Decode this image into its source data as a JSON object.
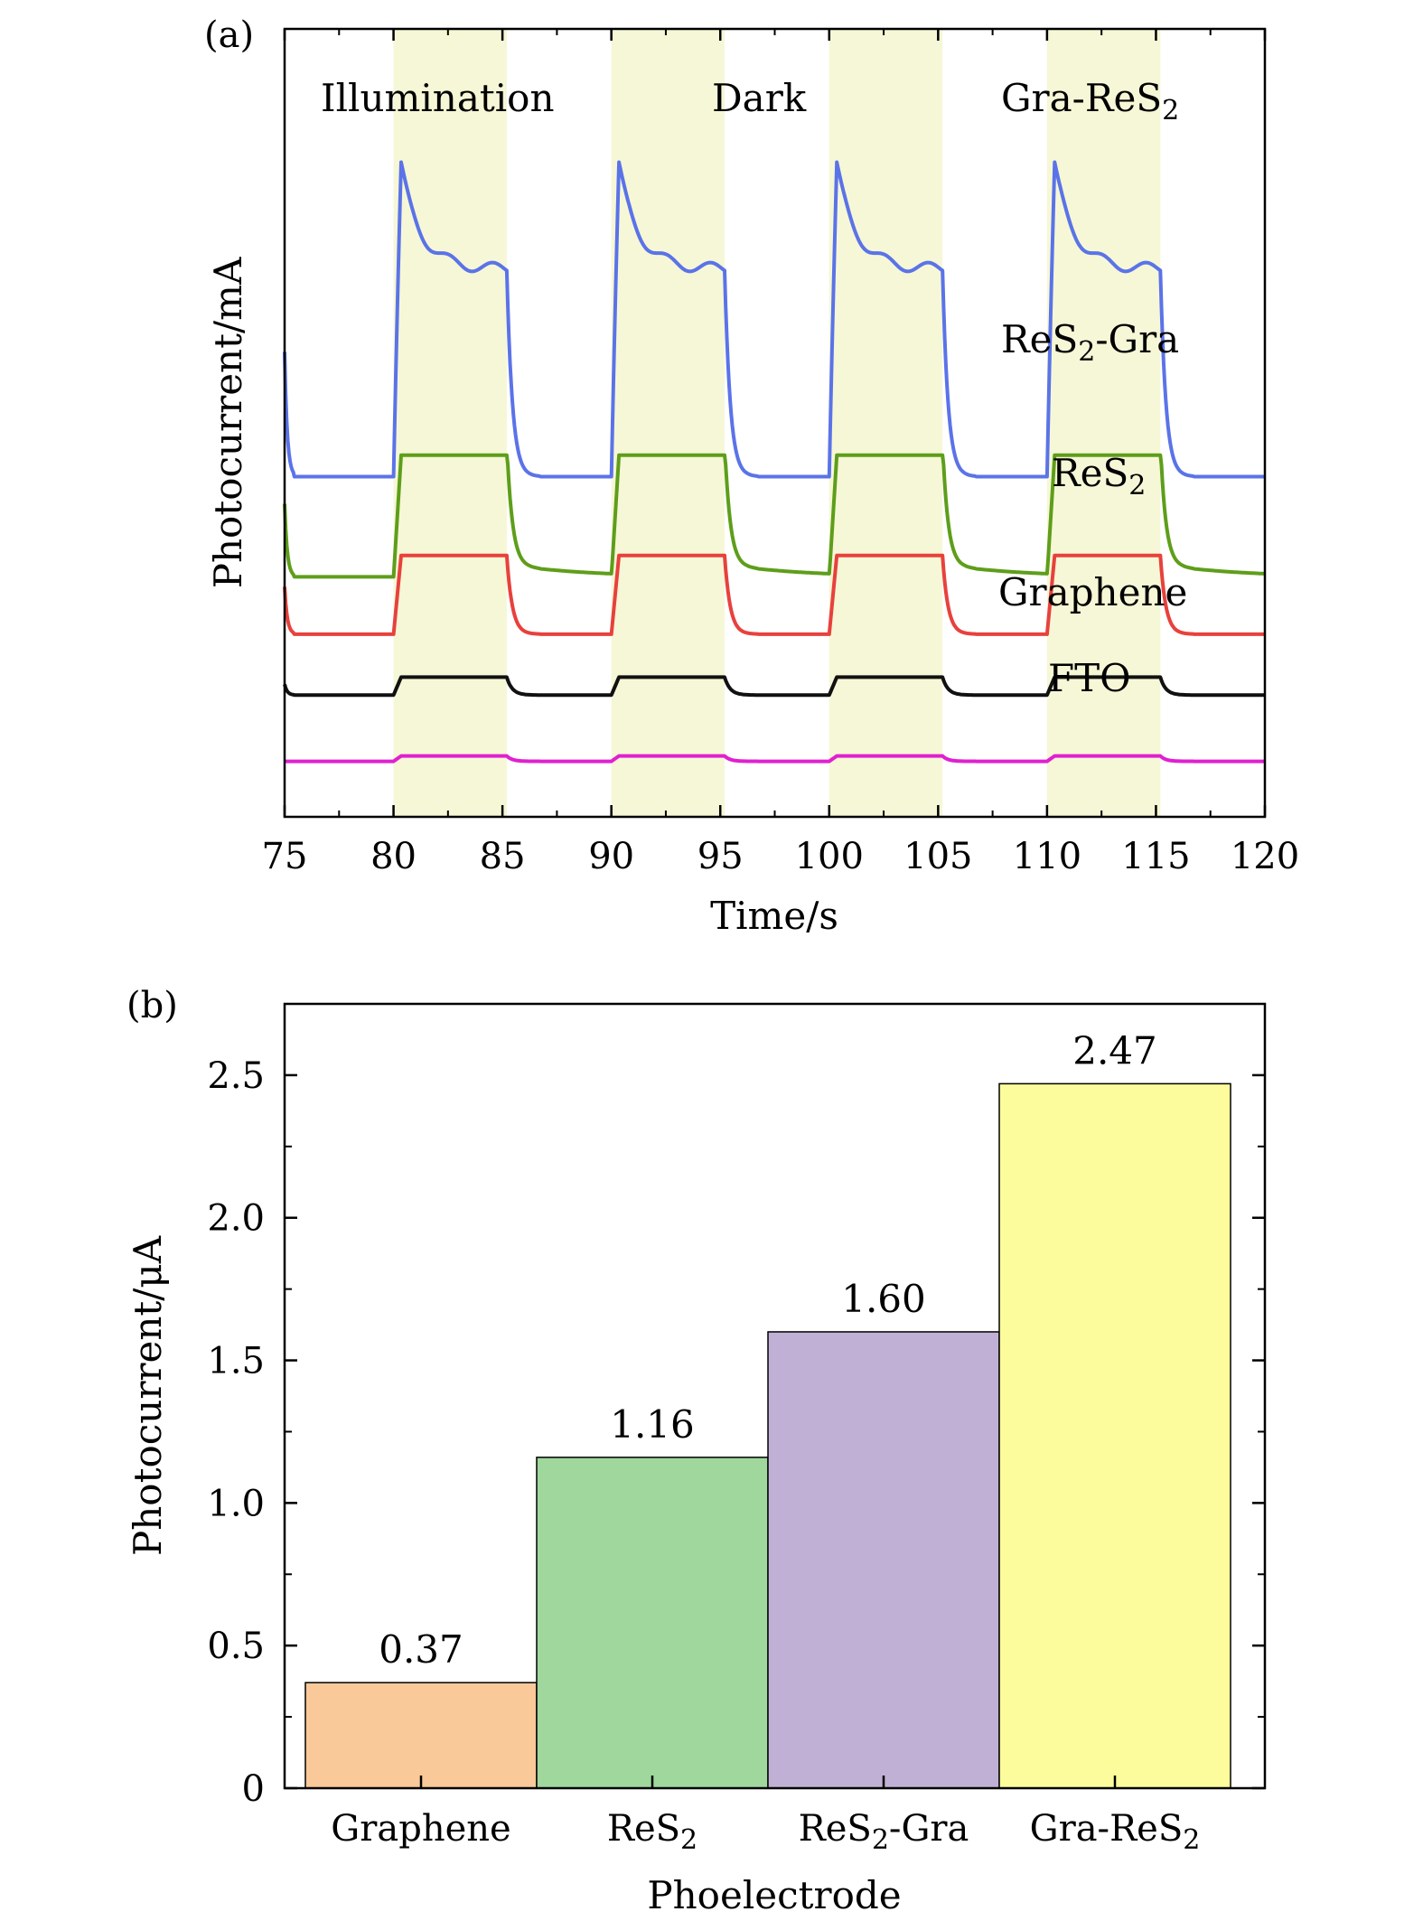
{
  "chart_data": [
    {
      "type": "line",
      "panel_label": "(a)",
      "xlabel": "Time/s",
      "ylabel": "Photocurrent/mA",
      "xlim": [
        75,
        120
      ],
      "x_ticks": [
        75,
        80,
        85,
        90,
        95,
        100,
        105,
        110,
        115,
        120
      ],
      "y_ticks_shown": false,
      "illumination_windows": [
        [
          80,
          85.2
        ],
        [
          90,
          95.2
        ],
        [
          100,
          105.2
        ],
        [
          110,
          115.2
        ]
      ],
      "illumination_color": "#f6f7d6",
      "annotations": [
        {
          "text": "Illumination",
          "sub": "",
          "after": ""
        },
        {
          "text": "Dark",
          "sub": "",
          "after": ""
        },
        {
          "text": "Gra-ReS",
          "sub": "2",
          "after": ""
        },
        {
          "text": "ReS",
          "sub": "2",
          "after": "-Gra"
        },
        {
          "text": "ReS",
          "sub": "2",
          "after": ""
        },
        {
          "text": "Graphene",
          "sub": "",
          "after": ""
        },
        {
          "text": "FTO",
          "sub": "",
          "after": ""
        }
      ],
      "series": [
        {
          "id": "Gra-ReS2",
          "color": "#5b73e8",
          "baseline": 9.0,
          "on_level": 14.8,
          "spike": 19.0,
          "decay": true
        },
        {
          "id": "ReS2-Gra",
          "color": "#5e9e1a",
          "baseline": 6.2,
          "on_level": 9.6,
          "spike": 9.6,
          "decay": false
        },
        {
          "id": "ReS2",
          "color": "#e8413c",
          "baseline": 4.6,
          "on_level": 6.8,
          "spike": 6.8,
          "decay": false
        },
        {
          "id": "Graphene",
          "color": "#111111",
          "baseline": 2.9,
          "on_level": 3.4,
          "spike": 3.4,
          "decay": false
        },
        {
          "id": "FTO",
          "color": "#e020d0",
          "baseline": 1.05,
          "on_level": 1.2,
          "spike": 1.2,
          "decay": false
        }
      ],
      "ylim": [
        -0.5,
        21.5
      ]
    },
    {
      "type": "bar",
      "panel_label": "(b)",
      "xlabel": "Phoelectrode",
      "ylabel": "Photocurrent/μA",
      "ylim": [
        0,
        2.75
      ],
      "y_ticks": [
        "0",
        "0.5",
        "1.0",
        "1.5",
        "2.0",
        "2.5"
      ],
      "y_tick_values": [
        0,
        0.5,
        1.0,
        1.5,
        2.0,
        2.5
      ],
      "categories": [
        {
          "text": "Graphene",
          "sub": "",
          "after": ""
        },
        {
          "text": "ReS",
          "sub": "2",
          "after": ""
        },
        {
          "text": "ReS",
          "sub": "2",
          "after": "-Gra"
        },
        {
          "text": "Gra-ReS",
          "sub": "2",
          "after": ""
        }
      ],
      "values": [
        0.37,
        1.16,
        1.6,
        2.47
      ],
      "value_labels": [
        "0.37",
        "1.16",
        "1.60",
        "2.47"
      ],
      "colors": [
        "#f9c99a",
        "#9fd79d",
        "#c1b0d6",
        "#fdfc9d"
      ]
    }
  ]
}
